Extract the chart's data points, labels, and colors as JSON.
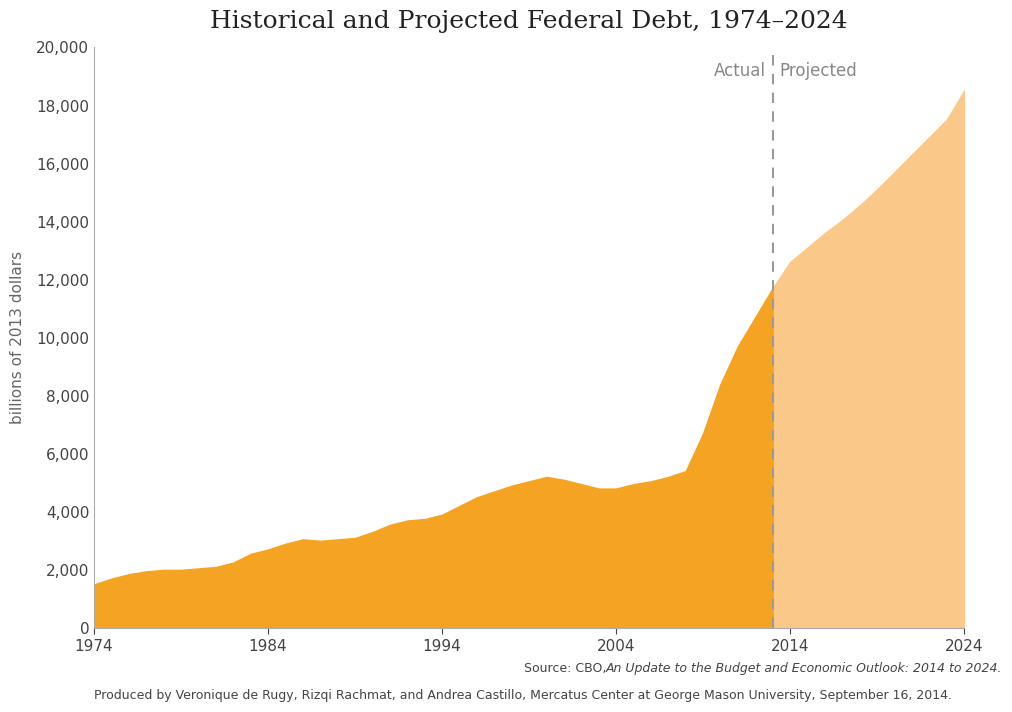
{
  "title": "Historical and Projected Federal Debt, 1974–2024",
  "ylabel": "billions of 2013 dollars",
  "actual_label": "Actual",
  "projected_label": "Projected",
  "divider_year": 2013,
  "actual_color": "#F5A323",
  "projected_color": "#FAC98A",
  "divider_color": "#999999",
  "background_color": "#FFFFFF",
  "years": [
    1974,
    1975,
    1976,
    1977,
    1978,
    1979,
    1980,
    1981,
    1982,
    1983,
    1984,
    1985,
    1986,
    1987,
    1988,
    1989,
    1990,
    1991,
    1992,
    1993,
    1994,
    1995,
    1996,
    1997,
    1998,
    1999,
    2000,
    2001,
    2002,
    2003,
    2004,
    2005,
    2006,
    2007,
    2008,
    2009,
    2010,
    2011,
    2012,
    2013,
    2014,
    2015,
    2016,
    2017,
    2018,
    2019,
    2020,
    2021,
    2022,
    2023,
    2024
  ],
  "values": [
    1500,
    1700,
    1850,
    1950,
    2000,
    2000,
    2050,
    2100,
    2250,
    2550,
    2700,
    2900,
    3050,
    3000,
    3050,
    3100,
    3300,
    3550,
    3700,
    3750,
    3900,
    4200,
    4500,
    4700,
    4900,
    5050,
    5200,
    5100,
    4950,
    4800,
    4800,
    4950,
    5050,
    5200,
    5400,
    6700,
    8400,
    9700,
    10700,
    11700,
    12600,
    13100,
    13600,
    14050,
    14550,
    15100,
    15700,
    16300,
    16900,
    17500,
    18500
  ],
  "xlim": [
    1974,
    2024
  ],
  "ylim": [
    0,
    20000
  ],
  "yticks": [
    0,
    2000,
    4000,
    6000,
    8000,
    10000,
    12000,
    14000,
    16000,
    18000,
    20000
  ],
  "xticks": [
    1974,
    1984,
    1994,
    2004,
    2014,
    2024
  ],
  "source_normal": "Source: CBO, ",
  "source_italic": "An Update to the Budget and Economic Outlook: 2014 to 2024.",
  "source_line2": "Produced by Veronique de Rugy, Rizqi Rachmat, and Andrea Castillo, Mercatus Center at George Mason University, September 16, 2014.",
  "title_fontsize": 18,
  "tick_fontsize": 11,
  "label_fontsize": 11,
  "source_fontsize": 9
}
